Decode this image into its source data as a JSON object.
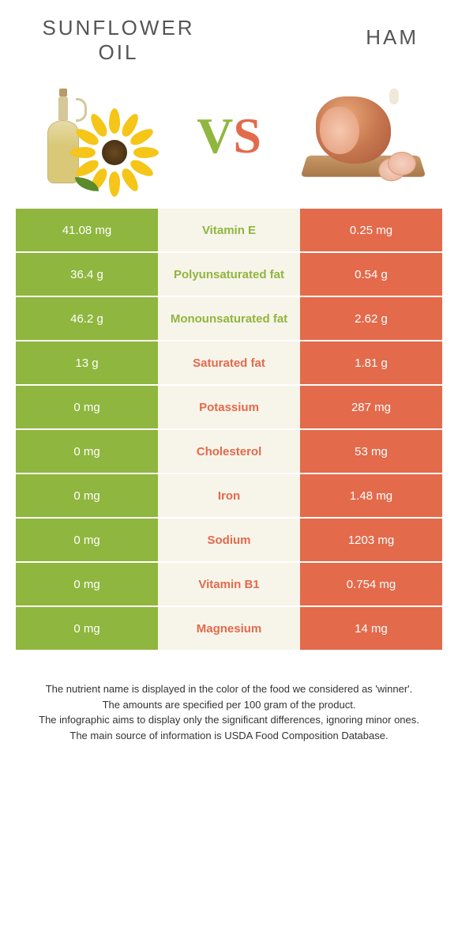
{
  "header": {
    "left_title_line1": "SUNFLOWER",
    "left_title_line2": "OIL",
    "right_title": "HAM"
  },
  "vs": {
    "v": "V",
    "s": "S"
  },
  "colors": {
    "green": "#8fb63e",
    "orange": "#e36a4b",
    "mid_bg": "#f7f4ea"
  },
  "rows": [
    {
      "left": "41.08 mg",
      "label": "Vitamin E",
      "right": "0.25 mg",
      "winner": "left"
    },
    {
      "left": "36.4 g",
      "label": "Polyunsaturated fat",
      "right": "0.54 g",
      "winner": "left"
    },
    {
      "left": "46.2 g",
      "label": "Monounsaturated fat",
      "right": "2.62 g",
      "winner": "left"
    },
    {
      "left": "13 g",
      "label": "Saturated fat",
      "right": "1.81 g",
      "winner": "right"
    },
    {
      "left": "0 mg",
      "label": "Potassium",
      "right": "287 mg",
      "winner": "right"
    },
    {
      "left": "0 mg",
      "label": "Cholesterol",
      "right": "53 mg",
      "winner": "right"
    },
    {
      "left": "0 mg",
      "label": "Iron",
      "right": "1.48 mg",
      "winner": "right"
    },
    {
      "left": "0 mg",
      "label": "Sodium",
      "right": "1203 mg",
      "winner": "right"
    },
    {
      "left": "0 mg",
      "label": "Vitamin B1",
      "right": "0.754 mg",
      "winner": "right"
    },
    {
      "left": "0 mg",
      "label": "Magnesium",
      "right": "14 mg",
      "winner": "right"
    }
  ],
  "footer": {
    "line1": "The nutrient name is displayed in the color of the food we considered as 'winner'.",
    "line2": "The amounts are specified per 100 gram of the product.",
    "line3": "The infographic aims to display only the significant differences, ignoring minor ones.",
    "line4": "The main source of information is USDA Food Composition Database."
  }
}
